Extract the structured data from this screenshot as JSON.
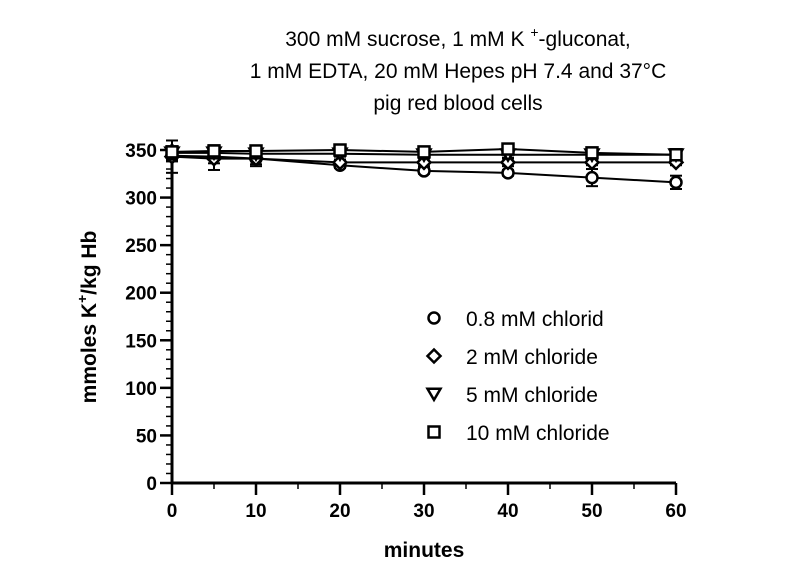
{
  "chart_data": {
    "type": "scatter",
    "title_lines": [
      "300 mM sucrose, 1 mM K +-gluconat,",
      "1 mM EDTA, 20 mM Hepes pH 7.4 and 37°C",
      "pig red blood cells"
    ],
    "title_parts": {
      "line1_pre": "300 mM sucrose, 1 mM K ",
      "line1_sup": "+",
      "line1_post": "-gluconat,"
    },
    "xlabel": "minutes",
    "ylabel": {
      "pre": "mmoles K",
      "sup": "+",
      "post": "/kg Hb"
    },
    "xlim": [
      0,
      60
    ],
    "ylim": [
      0,
      350
    ],
    "xticks": [
      0,
      10,
      20,
      30,
      40,
      50,
      60
    ],
    "yticks": [
      0,
      50,
      100,
      150,
      200,
      250,
      300,
      350
    ],
    "grid": false,
    "legend_position": "lower-right",
    "series": [
      {
        "name": "0.8 mM chlorid",
        "marker": "circle",
        "x": [
          0,
          5,
          10,
          20,
          30,
          40,
          50,
          60
        ],
        "y": [
          344,
          343,
          341,
          334,
          328,
          326,
          321,
          316
        ],
        "err": [
          6,
          7,
          6,
          3,
          3,
          3,
          9,
          7
        ]
      },
      {
        "name": "2 mM chloride",
        "marker": "diamond",
        "x": [
          0,
          5,
          10,
          20,
          30,
          40,
          50,
          60
        ],
        "y": [
          343,
          341,
          341,
          337,
          337,
          337,
          337,
          337
        ],
        "err": [
          17,
          12,
          8,
          3,
          4,
          4,
          3,
          3
        ]
      },
      {
        "name": "5 mM chloride",
        "marker": "triangle-down",
        "x": [
          0,
          5,
          10,
          20,
          30,
          40,
          50,
          60
        ],
        "y": [
          347,
          347,
          346,
          346,
          345,
          345,
          345,
          345
        ],
        "err": [
          7,
          6,
          5,
          3,
          3,
          3,
          3,
          3
        ]
      },
      {
        "name": "10 mM chloride",
        "marker": "square",
        "x": [
          0,
          5,
          10,
          20,
          30,
          40,
          50,
          60
        ],
        "y": [
          348,
          349,
          349,
          350,
          348,
          351,
          347,
          345
        ],
        "err": [
          5,
          6,
          4,
          2,
          2,
          3,
          2,
          2
        ]
      }
    ]
  }
}
